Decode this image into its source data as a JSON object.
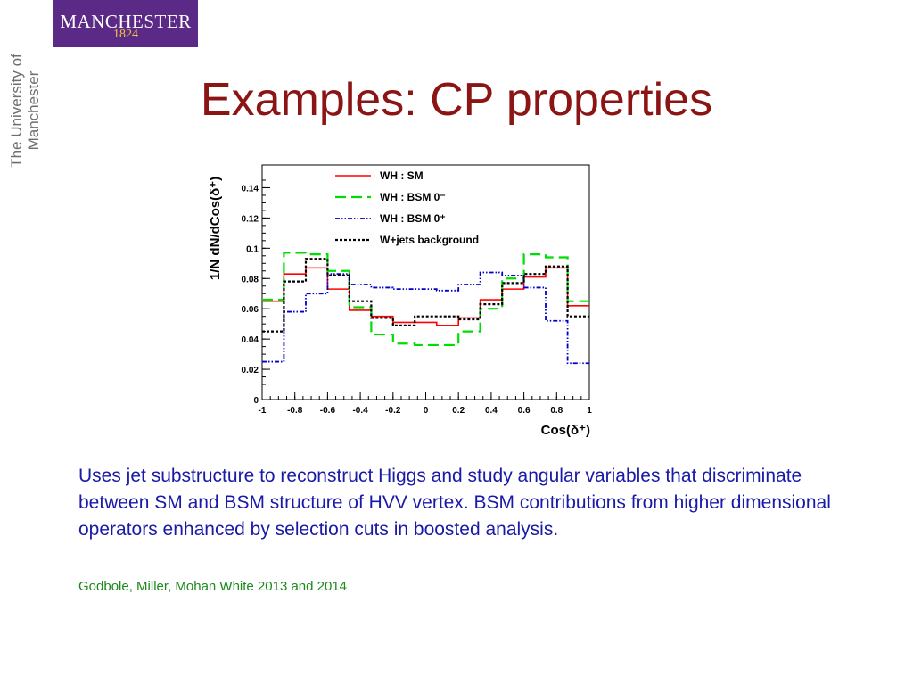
{
  "logo": {
    "name": "MANCHESTER",
    "year": "1824",
    "vertical_text": "The University of Manchester",
    "colors": {
      "box": "#5b2a86",
      "year": "#f2c23a"
    }
  },
  "slide": {
    "title": "Examples: CP properties",
    "body": "Uses jet substructure to reconstruct Higgs and study angular variables that discriminate between SM and BSM structure of HVV vertex. BSM contributions from higher dimensional operators enhanced by selection cuts in boosted analysis.",
    "citation": "Godbole, Miller, Mohan White 2013 and 2014",
    "colors": {
      "title": "#8b1414",
      "body": "#1a1aa8",
      "citation": "#1a8a1a"
    }
  },
  "chart_data": {
    "type": "line",
    "title": "",
    "xlabel": "Cos(δ⁺)",
    "ylabel": "1/N dN/dCos(δ⁺)",
    "xlim": [
      -1,
      1
    ],
    "ylim": [
      0,
      0.155
    ],
    "grid": false,
    "legend_position": "top-center",
    "x_ticks": [
      "-1",
      "-0.8",
      "-0.6",
      "-0.4",
      "-0.2",
      "0",
      "0.2",
      "0.4",
      "0.6",
      "0.8",
      "1"
    ],
    "y_ticks": [
      "0",
      "0.02",
      "0.04",
      "0.06",
      "0.08",
      "0.1",
      "0.12",
      "0.14"
    ],
    "bin_edges": [
      -1,
      -0.867,
      -0.733,
      -0.6,
      -0.467,
      -0.333,
      -0.2,
      -0.067,
      0.067,
      0.2,
      0.333,
      0.467,
      0.6,
      0.733,
      0.867,
      1
    ],
    "series": [
      {
        "name": "WH : SM",
        "color": "#ff0000",
        "dash": "solid",
        "values": [
          0.065,
          0.083,
          0.087,
          0.073,
          0.059,
          0.055,
          0.051,
          0.051,
          0.049,
          0.054,
          0.066,
          0.073,
          0.081,
          0.087,
          0.062
        ]
      },
      {
        "name": "WH : BSM 0⁻",
        "color": "#00dd00",
        "dash": "longdash",
        "values": [
          0.066,
          0.097,
          0.096,
          0.085,
          0.061,
          0.043,
          0.037,
          0.036,
          0.036,
          0.045,
          0.06,
          0.08,
          0.096,
          0.094,
          0.065
        ]
      },
      {
        "name": "WH : BSM 0⁺",
        "color": "#0000cc",
        "dash": "dashdot",
        "values": [
          0.025,
          0.058,
          0.07,
          0.083,
          0.076,
          0.074,
          0.073,
          0.073,
          0.072,
          0.076,
          0.084,
          0.082,
          0.074,
          0.052,
          0.024
        ]
      },
      {
        "name": "W+jets background",
        "color": "#000000",
        "dash": "dotted",
        "values": [
          0.045,
          0.078,
          0.093,
          0.082,
          0.065,
          0.054,
          0.049,
          0.055,
          0.055,
          0.053,
          0.063,
          0.077,
          0.083,
          0.088,
          0.055
        ]
      }
    ]
  }
}
